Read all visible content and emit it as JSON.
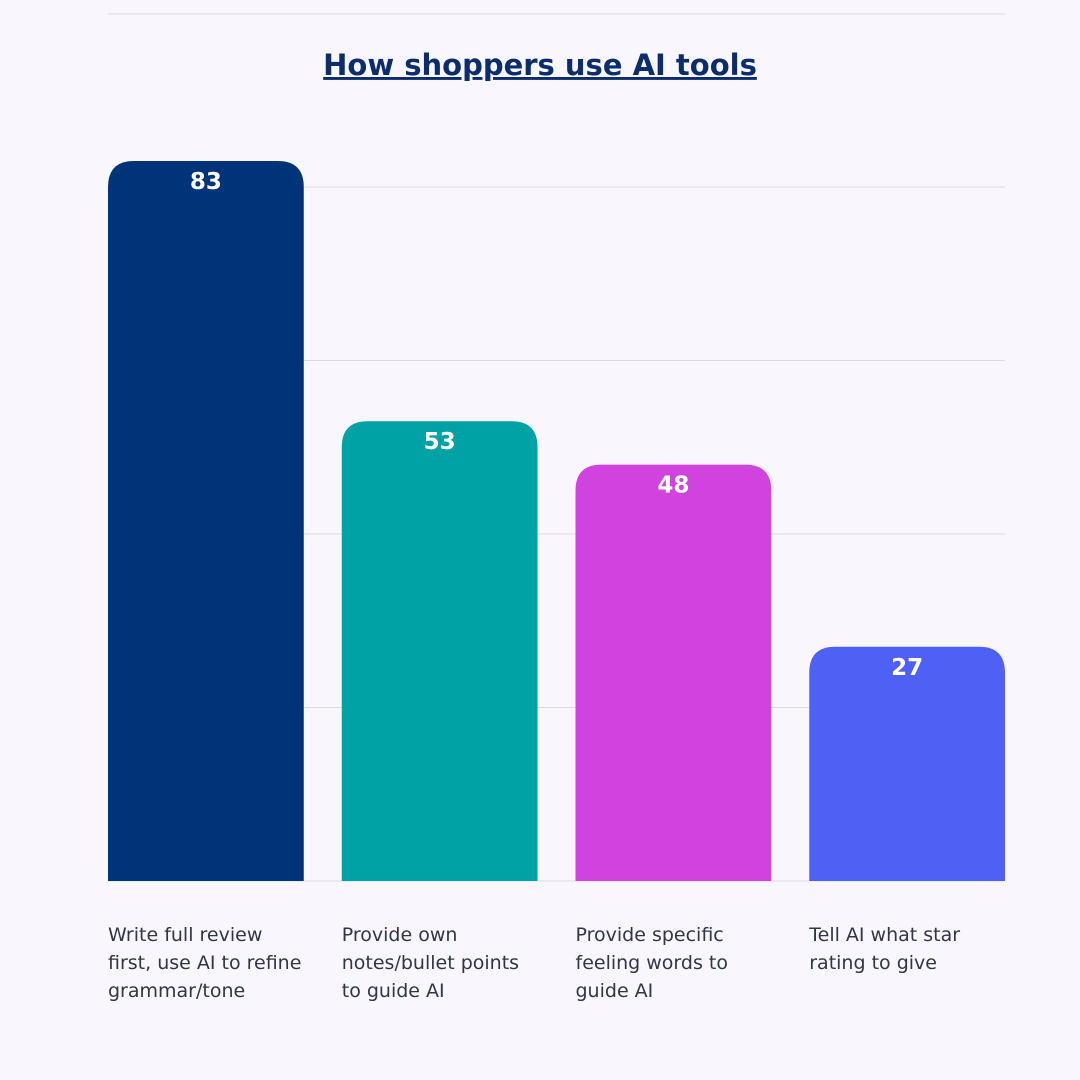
{
  "chart_data": {
    "type": "bar",
    "title": "How shoppers use AI tools",
    "categories": [
      "Write full review first, use AI to refine grammar/tone",
      "Provide own notes/bullet points to guide AI",
      "Provide specific feeling words to guide AI",
      "Tell AI what star rating to give"
    ],
    "values": [
      83,
      53,
      48,
      27
    ],
    "colors": [
      "#003479",
      "#00a2a6",
      "#d043de",
      "#4f60f5"
    ],
    "ylim": [
      0,
      80
    ],
    "yticks": [
      0,
      20,
      40,
      60,
      80
    ],
    "grid": true
  }
}
